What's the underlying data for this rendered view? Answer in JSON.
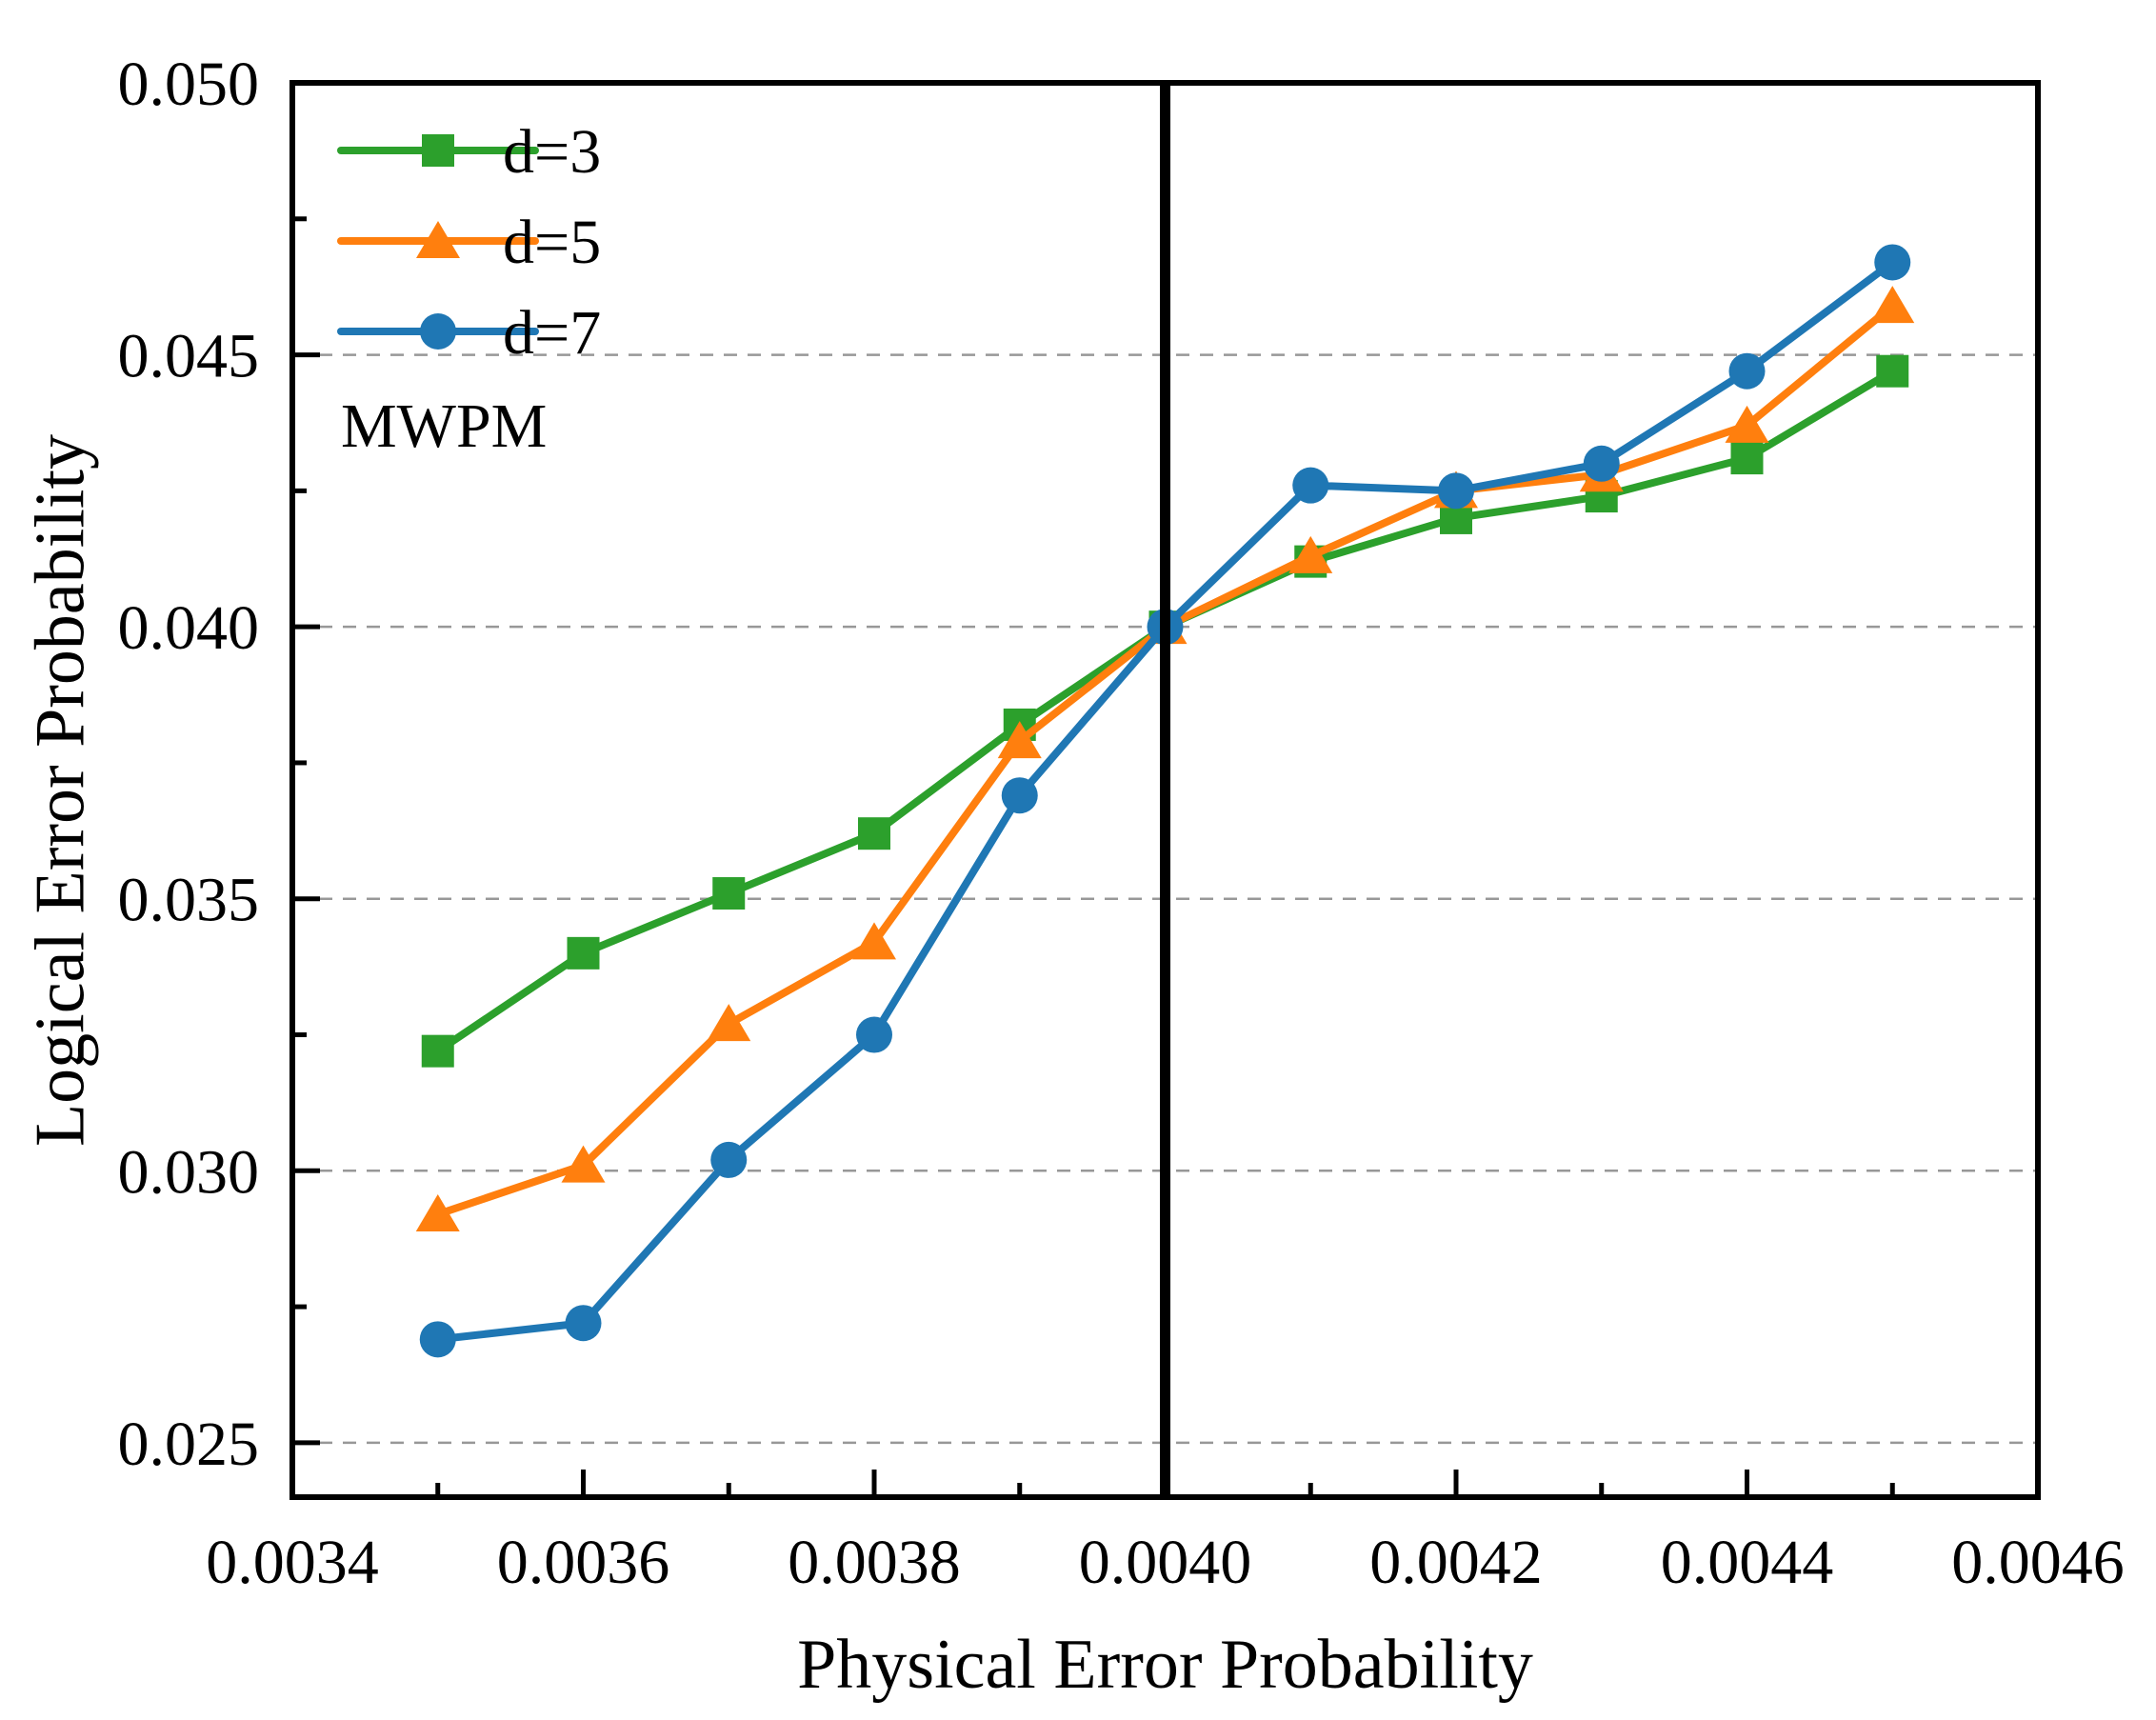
{
  "chart_data": {
    "type": "line",
    "title": "",
    "xlabel": "Physical Error Probability",
    "ylabel": "Logical Error Probability",
    "annotation": "MWPM",
    "x": [
      0.0035,
      0.0036,
      0.0037,
      0.0038,
      0.0039,
      0.004,
      0.0041,
      0.0042,
      0.0043,
      0.0044,
      0.0045
    ],
    "series": [
      {
        "name": "d=3",
        "marker": "square",
        "color": "#2ca02c",
        "values": [
          0.0322,
          0.034,
          0.0351,
          0.0362,
          0.0382,
          0.04,
          0.0412,
          0.042,
          0.0424,
          0.0431,
          0.0447
        ]
      },
      {
        "name": "d=5",
        "marker": "triangle",
        "color": "#ff7f0e",
        "values": [
          0.0292,
          0.0301,
          0.0327,
          0.0342,
          0.0379,
          0.04,
          0.0413,
          0.0425,
          0.0428,
          0.0437,
          0.0459
        ]
      },
      {
        "name": "d=7",
        "marker": "circle",
        "color": "#1f77b4",
        "values": [
          0.0269,
          0.0272,
          0.0302,
          0.0325,
          0.0369,
          0.04,
          0.0426,
          0.0425,
          0.043,
          0.0447,
          0.0467
        ]
      }
    ],
    "xlim": [
      0.0034,
      0.0046
    ],
    "ylim": [
      0.024,
      0.05
    ],
    "xticks": {
      "values": [
        0.0034,
        0.0036,
        0.0038,
        0.004,
        0.0042,
        0.0044,
        0.0046
      ],
      "labels": [
        "0.0034",
        "0.0036",
        "0.0038",
        "0.0040",
        "0.0042",
        "0.0044",
        "0.0046"
      ]
    },
    "yticks": {
      "values": [
        0.025,
        0.03,
        0.035,
        0.04,
        0.045,
        0.05
      ],
      "labels": [
        "0.025",
        "0.030",
        "0.035",
        "0.040",
        "0.045",
        "0.050"
      ]
    },
    "minor_xticks": [
      0.0035,
      0.0037,
      0.0039,
      0.0041,
      0.0043,
      0.0045
    ],
    "minor_yticks": [
      0.0275,
      0.0325,
      0.0375,
      0.0425,
      0.0475
    ],
    "grid": {
      "axis": "y",
      "style": "dashed",
      "color": "#989898"
    },
    "threshold_line": {
      "x": 0.004,
      "color": "#000000"
    },
    "legend": {
      "position": "top-left"
    },
    "axis_color": "#000000",
    "background": "#ffffff"
  }
}
